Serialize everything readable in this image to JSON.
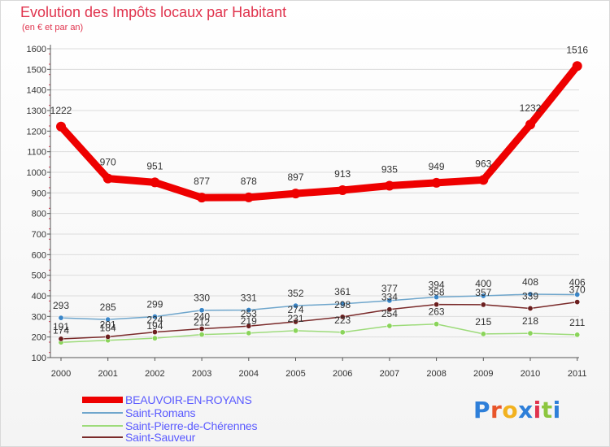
{
  "title": "Evolution des Impôts locaux par Habitant",
  "subtitle": "(en € et par an)",
  "logo": {
    "text": "Proxiti",
    "letters": [
      "P",
      "r",
      "o",
      "x",
      "i",
      "t",
      "i"
    ],
    "colors": [
      "#2e7fd9",
      "#e8552a",
      "#f2b21f",
      "#2e7fd9",
      "#e0334d",
      "#8cc63f",
      "#2e7fd9"
    ]
  },
  "chart_data": {
    "type": "line",
    "title": "Evolution des Impôts locaux par Habitant",
    "subtitle": "(en € et par an)",
    "xlabel": "",
    "ylabel": "",
    "ylim": [
      100,
      1600
    ],
    "y_ticks": [
      "100",
      "200",
      "300",
      "400",
      "500",
      "600",
      "700",
      "800",
      "900",
      "1000",
      "1100",
      "1200",
      "1300",
      "1400",
      "1500",
      "1600"
    ],
    "categories": [
      "2000",
      "2001",
      "2002",
      "2003",
      "2004",
      "2005",
      "2006",
      "2007",
      "2008",
      "2009",
      "2010",
      "2011"
    ],
    "grid": true,
    "legend_position": "bottom-left",
    "series": [
      {
        "name": "BEAUVOIR-EN-ROYANS",
        "color": "#ee0000",
        "values": [
          1222,
          970,
          951,
          877,
          878,
          897,
          913,
          935,
          949,
          963,
          1232,
          1516
        ],
        "labels": [
          "1222",
          "970",
          "951",
          "877",
          "878",
          "897",
          "913",
          "935",
          "949",
          "963",
          "1232",
          "1516"
        ]
      },
      {
        "name": "Saint-Romans",
        "color": "#6fa6cc",
        "point_color": "#3a86c8",
        "values": [
          293,
          285,
          299,
          330,
          331,
          352,
          361,
          377,
          394,
          400,
          408,
          406
        ],
        "labels": [
          "293",
          "285",
          "299",
          "330",
          "331",
          "352",
          "361",
          "377",
          "394",
          "400",
          "408",
          "406"
        ]
      },
      {
        "name": "Saint-Pierre-de-Chérennes",
        "color": "#9ddb7a",
        "point_color": "#8ad45a",
        "values": [
          174,
          184,
          194,
          212,
          219,
          231,
          223,
          254,
          263,
          215,
          218,
          211
        ],
        "labels": [
          "174",
          "184",
          "194",
          "212",
          "219",
          "231",
          "223",
          "254",
          "263",
          "215",
          "218",
          "211"
        ]
      },
      {
        "name": "Saint-Sauveur",
        "color": "#7a2a2a",
        "point_color": "#6b1f1f",
        "values": [
          191,
          201,
          224,
          240,
          253,
          274,
          298,
          334,
          358,
          357,
          339,
          370
        ],
        "labels": [
          "191",
          "201",
          "224",
          "240",
          "253",
          "274",
          "298",
          "334",
          "358",
          "357",
          "339",
          "370"
        ]
      }
    ]
  }
}
